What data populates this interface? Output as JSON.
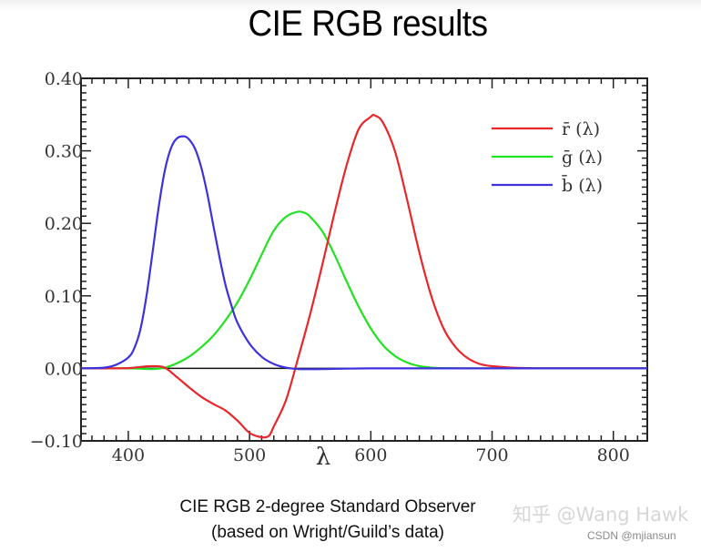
{
  "slide": {
    "title": "CIE RGB results",
    "caption_line1": "CIE RGB 2-degree Standard Observer",
    "caption_line2": "(based on Wright/Guild’s data)",
    "watermark": "知乎 @Wang Hawk",
    "credit": "CSDN @mjiansun"
  },
  "chart_data": {
    "type": "line",
    "title": "CIE RGB results",
    "xlabel": "λ",
    "ylabel": "",
    "xlim": [
      361,
      828
    ],
    "ylim": [
      -0.1,
      0.4
    ],
    "x_ticks": [
      400,
      500,
      600,
      700,
      800
    ],
    "x_tick_labels": [
      "400",
      "500",
      "600",
      "700",
      "800"
    ],
    "y_ticks": [
      -0.1,
      0.0,
      0.1,
      0.2,
      0.3,
      0.4
    ],
    "y_tick_labels": [
      "−0.10",
      "0.00",
      "0.10",
      "0.20",
      "0.30",
      "0.40"
    ],
    "grid": false,
    "legend_position": "upper right",
    "zero_line": true,
    "series": [
      {
        "name": "r̄ (λ)",
        "color": "#e8262b",
        "x": [
          361,
          380,
          400,
          410,
          420,
          430,
          440,
          450,
          460,
          470,
          480,
          490,
          500,
          510,
          516,
          520,
          530,
          540,
          550,
          560,
          570,
          580,
          590,
          600,
          603,
          610,
          620,
          630,
          640,
          650,
          660,
          670,
          680,
          690,
          700,
          720,
          740,
          780,
          828
        ],
        "values": [
          0.0,
          0.0,
          0.0003,
          0.002,
          0.003,
          0.001,
          -0.012,
          -0.026,
          -0.039,
          -0.049,
          -0.058,
          -0.072,
          -0.089,
          -0.095,
          -0.093,
          -0.08,
          -0.044,
          0.014,
          0.075,
          0.143,
          0.214,
          0.28,
          0.33,
          0.347,
          0.349,
          0.339,
          0.299,
          0.232,
          0.16,
          0.099,
          0.055,
          0.029,
          0.014,
          0.006,
          0.003,
          0.0007,
          0.0001,
          0.0,
          0.0
        ]
      },
      {
        "name": "ḡ (λ)",
        "color": "#21e221",
        "x": [
          361,
          400,
          420,
          430,
          440,
          450,
          460,
          470,
          480,
          490,
          500,
          510,
          520,
          530,
          540,
          546,
          550,
          560,
          570,
          580,
          590,
          600,
          610,
          620,
          630,
          640,
          650,
          660,
          680,
          700,
          828
        ],
        "values": [
          0.0,
          0.0,
          -0.001,
          0.001,
          0.007,
          0.016,
          0.029,
          0.045,
          0.066,
          0.091,
          0.122,
          0.157,
          0.19,
          0.209,
          0.216,
          0.214,
          0.209,
          0.189,
          0.157,
          0.12,
          0.085,
          0.055,
          0.032,
          0.017,
          0.008,
          0.003,
          0.001,
          0.0003,
          0.0,
          0.0,
          0.0
        ]
      },
      {
        "name": "b̄ (λ)",
        "color": "#3c32dc",
        "x": [
          361,
          380,
          390,
          400,
          405,
          410,
          415,
          420,
          425,
          430,
          435,
          440,
          446,
          450,
          455,
          460,
          465,
          470,
          475,
          480,
          485,
          490,
          500,
          510,
          520,
          530,
          540,
          560,
          600,
          700,
          828
        ],
        "values": [
          0.0,
          0.001,
          0.005,
          0.015,
          0.028,
          0.054,
          0.1,
          0.16,
          0.222,
          0.272,
          0.303,
          0.317,
          0.32,
          0.316,
          0.303,
          0.278,
          0.242,
          0.198,
          0.155,
          0.116,
          0.087,
          0.063,
          0.034,
          0.016,
          0.006,
          0.001,
          -0.001,
          -0.001,
          0.0,
          0.0,
          0.0
        ]
      }
    ]
  }
}
